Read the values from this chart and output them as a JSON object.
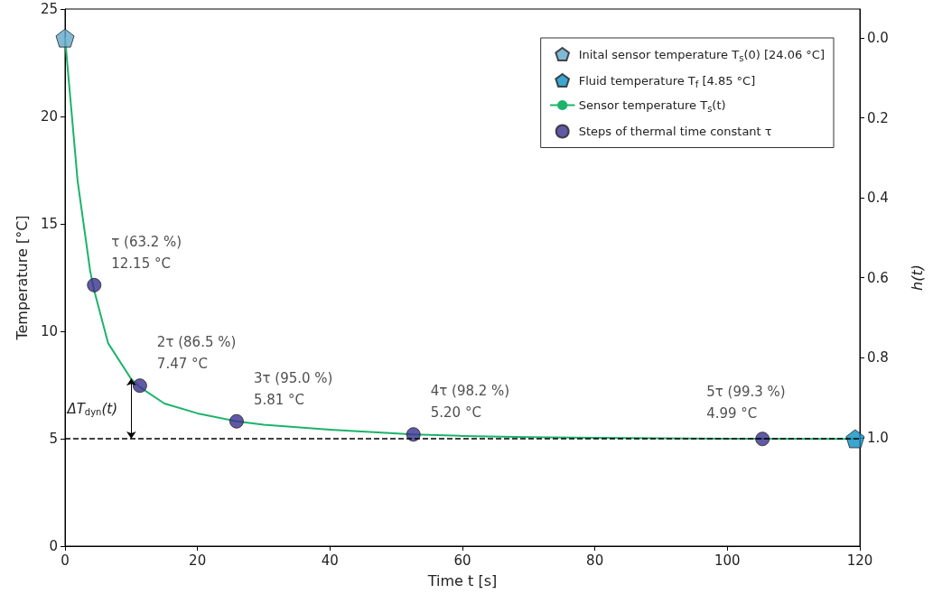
{
  "chart_data": {
    "type": "line",
    "xlabel": "Time t [s]",
    "ylabel": "Temperature [°C]",
    "y2label": "h(t)",
    "xlim": [
      0,
      120
    ],
    "xticks": [
      0,
      20,
      40,
      60,
      80,
      100,
      120
    ],
    "ylim": [
      0,
      25
    ],
    "yticks": [
      0,
      5,
      10,
      15,
      20,
      25
    ],
    "y2lim": [
      1.271,
      -0.072
    ],
    "y2ticks": [
      {
        "value": 0,
        "label": "0.0"
      },
      {
        "value": 0.2,
        "label": "0.2"
      },
      {
        "value": 0.4,
        "label": "0.4"
      },
      {
        "value": 0.6,
        "label": "0.6"
      },
      {
        "value": 0.8,
        "label": "0.8"
      },
      {
        "value": 1,
        "label": "1.0"
      }
    ],
    "grid": false,
    "legend": "top right",
    "series": [
      {
        "type": "scatter",
        "name": "Inital sensor temperature T$_{s}$(0) [24.06 °C]",
        "color": "#62a8cb",
        "x": [
          0
        ],
        "values": [
          23.65
        ]
      },
      {
        "type": "scatter",
        "name": "Fluid temperature T$_{f}$ [4.85 °C]",
        "color": "#0c8fc2",
        "x": [
          119.3
        ],
        "values": [
          5.0
        ]
      },
      {
        "name": "Sensor temperature T$_{s}$(t)",
        "color": "#1db36b",
        "marker": "none",
        "line_style": "solid",
        "x": [
          0,
          0.7,
          1.9,
          3.8,
          4.4,
          6.5,
          10,
          11.3,
          15,
          20,
          25.9,
          30,
          40,
          52.6,
          60,
          70,
          80,
          100,
          119.3
        ],
        "values": [
          23.65,
          21.2,
          17.0,
          12.8,
          11.9,
          9.45,
          7.77,
          7.4,
          6.64,
          6.18,
          5.81,
          5.65,
          5.42,
          5.2,
          5.13,
          5.07,
          5.04,
          5.0,
          4.99
        ]
      },
      {
        "type": "scatter",
        "name": "Steps of thermal time constant τ",
        "color": "#3b2f8f",
        "marker": "circle",
        "x": [
          4.4,
          11.3,
          25.9,
          52.6,
          105.3
        ],
        "values": [
          12.15,
          7.47,
          5.81,
          5.2,
          4.99
        ],
        "value_labels": [
          "τ (63.2 %)\n12.15 °C",
          "2τ (86.5 %)\n7.47 °C",
          "3τ (95.0 %)\n5.81 °C",
          "4τ (98.2 %)\n5.20 °C",
          "5τ (99.3 %)\n4.99 °C"
        ]
      }
    ],
    "ref_lines": [
      {
        "axis": "y",
        "value": 5,
        "color": "#000000",
        "line_style": "dashed"
      }
    ],
    "annotations": [
      {
        "text": "ΔT$_{dyn}$(t)",
        "x": 10,
        "y": 7.8
      }
    ]
  }
}
